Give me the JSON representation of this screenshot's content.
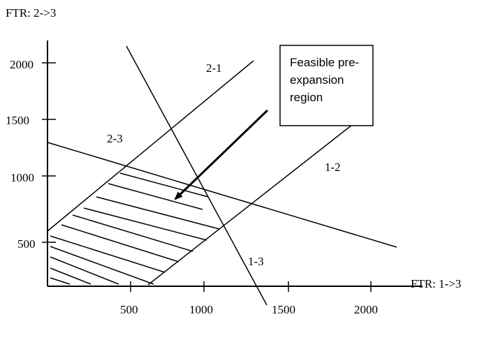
{
  "axes": {
    "x_label": "FTR: 1->3",
    "y_label": "FTR: 2->3",
    "x_ticks": [
      "500",
      "1000",
      "1500",
      "2000"
    ],
    "y_ticks": [
      "500",
      "1000",
      "1500",
      "2000"
    ]
  },
  "constraint_lines": [
    {
      "id": "2-1",
      "label": "2-1"
    },
    {
      "id": "2-3",
      "label": "2-3"
    },
    {
      "id": "1-2",
      "label": "1-2"
    },
    {
      "id": "1-3",
      "label": "1-3"
    }
  ],
  "callout": {
    "line1": "Feasible pre-",
    "line2": "expansion",
    "line3": "region"
  },
  "colors": {
    "ink": "#000000",
    "background": "#ffffff"
  }
}
